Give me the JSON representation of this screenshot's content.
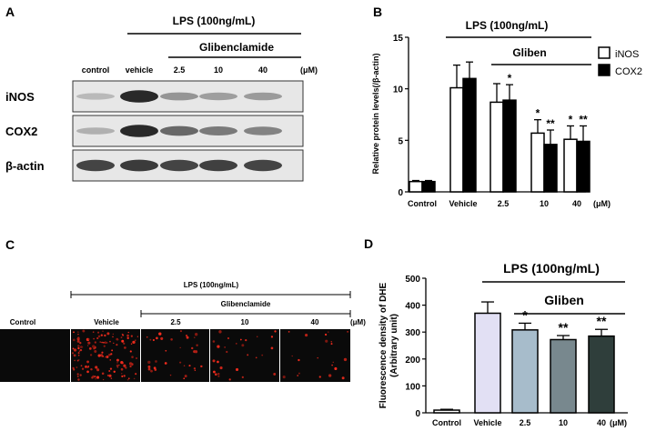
{
  "panel_a": {
    "letter": "A",
    "lps_label": "LPS (100ng/mL)",
    "drug_label": "Glibenclamide",
    "lanes": [
      "control",
      "vehicle",
      "2.5",
      "10",
      "40"
    ],
    "unit": "(μM)",
    "rows": [
      {
        "label": "iNOS",
        "intensity": [
          0.15,
          0.95,
          0.35,
          0.3,
          0.32
        ]
      },
      {
        "label": "COX2",
        "intensity": [
          0.2,
          0.95,
          0.6,
          0.5,
          0.45
        ]
      },
      {
        "label": "β-actin",
        "intensity": [
          0.8,
          0.85,
          0.8,
          0.82,
          0.8
        ]
      }
    ]
  },
  "panel_c": {
    "letter": "C",
    "lps_label": "LPS (100ng/mL)",
    "drug_label": "Glibenclamide",
    "lanes": [
      "Control",
      "Vehicle",
      "2.5",
      "10",
      "40"
    ],
    "unit": "(μM)",
    "dot_density": [
      0,
      1.0,
      0.25,
      0.2,
      0.15
    ]
  },
  "chart_data": [
    {
      "type": "bar",
      "letter": "B",
      "ylabel": "Relative protein levels(/β-actin)",
      "ylim": [
        0,
        15
      ],
      "yticks": [
        0,
        5,
        10,
        15
      ],
      "categories": [
        "Control",
        "Vehicle",
        "2.5",
        "10",
        "40"
      ],
      "unit": "(μM)",
      "lps_label": "LPS (100ng/mL)",
      "drug_label": "Gliben",
      "series": [
        {
          "name": "iNOS",
          "color": "#ffffff",
          "values": [
            1.0,
            10.1,
            8.7,
            5.7,
            5.1
          ],
          "errors": [
            0.1,
            2.2,
            1.8,
            1.3,
            1.3
          ],
          "sig": [
            "",
            "",
            "",
            "*",
            "*"
          ]
        },
        {
          "name": "COX2",
          "color": "#000000",
          "values": [
            1.0,
            11.0,
            8.9,
            4.6,
            4.9
          ],
          "errors": [
            0.1,
            1.6,
            1.5,
            1.4,
            1.5
          ],
          "sig": [
            "",
            "",
            "*",
            "**",
            "**"
          ]
        }
      ]
    },
    {
      "type": "bar",
      "letter": "D",
      "ylabel": "Fluorescence density of DHE\n(Arbitrary unit)",
      "ylim": [
        0,
        500
      ],
      "yticks": [
        0,
        100,
        200,
        300,
        400,
        500
      ],
      "categories": [
        "Control",
        "Vehicle",
        "2.5",
        "10",
        "40"
      ],
      "unit": "(μM)",
      "lps_label": "LPS (100ng/mL)",
      "drug_label": "Gliben",
      "values": [
        10,
        370,
        308,
        272,
        285
      ],
      "errors": [
        3,
        42,
        25,
        15,
        25
      ],
      "colors": [
        "#ffffff",
        "#e2e0f4",
        "#a7bccb",
        "#78888e",
        "#2f3e3b"
      ],
      "sig": [
        "",
        "",
        "*",
        "**",
        "**"
      ]
    }
  ]
}
